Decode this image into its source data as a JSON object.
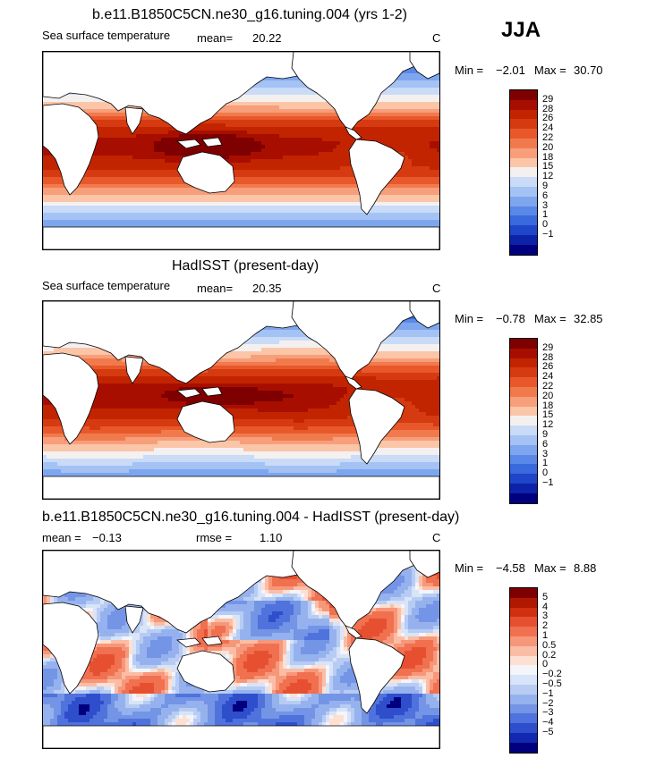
{
  "season": "JJA",
  "colors": {
    "sst": [
      "#7f0000",
      "#a80e00",
      "#c22400",
      "#d63a10",
      "#e8582a",
      "#f17a4d",
      "#f79e7b",
      "#fbc5a8",
      "#f5f0f0",
      "#c9dbf7",
      "#a4c2f4",
      "#7ea6ef",
      "#5a88e8",
      "#3a68dd",
      "#1f45c8",
      "#0c22a8",
      "#00007f"
    ],
    "diff": [
      "#7f0000",
      "#b01800",
      "#d03010",
      "#e65030",
      "#f07050",
      "#f7977a",
      "#fbbda5",
      "#fde0d2",
      "#f4f4fb",
      "#d8e4f8",
      "#b8ccf3",
      "#96b2ee",
      "#7494e6",
      "#5072dc",
      "#2e4ecc",
      "#1228b0",
      "#00007f"
    ],
    "land": "#ffffff",
    "outline": "#000000"
  },
  "panels": [
    {
      "title": "b.e11.B1850C5CN.ne30_g16.tuning.004 (yrs 1-2)",
      "variable": "Sea surface temperature",
      "mean_label": "mean=",
      "mean_value": "20.22",
      "units": "C",
      "min_label": "Min =",
      "min_value": "−2.01",
      "max_label": "Max =",
      "max_value": "30.70",
      "levels": [
        "29",
        "28",
        "26",
        "24",
        "22",
        "20",
        "18",
        "15",
        "12",
        "9",
        "6",
        "3",
        "1",
        "0",
        "−1"
      ]
    },
    {
      "title": "HadISST (present-day)",
      "variable": "Sea surface temperature",
      "mean_label": "mean=",
      "mean_value": "20.35",
      "units": "C",
      "min_label": "Min =",
      "min_value": "−0.78",
      "max_label": "Max =",
      "max_value": "32.85",
      "levels": [
        "29",
        "28",
        "26",
        "24",
        "22",
        "20",
        "18",
        "15",
        "12",
        "9",
        "6",
        "3",
        "1",
        "0",
        "−1"
      ]
    },
    {
      "title": "b.e11.B1850C5CN.ne30_g16.tuning.004 - HadISST (present-day)",
      "mean_label": "mean =",
      "mean_value": "−0.13",
      "rmse_label": "rmse =",
      "rmse_value": "1.10",
      "units": "C",
      "min_label": "Min =",
      "min_value": "−4.58",
      "max_label": "Max =",
      "max_value": "8.88",
      "levels": [
        "5",
        "4",
        "3",
        "2",
        "1",
        "0.5",
        "0.2",
        "0",
        "−0.2",
        "−0.5",
        "−1",
        "−2",
        "−3",
        "−4",
        "−5"
      ]
    }
  ]
}
